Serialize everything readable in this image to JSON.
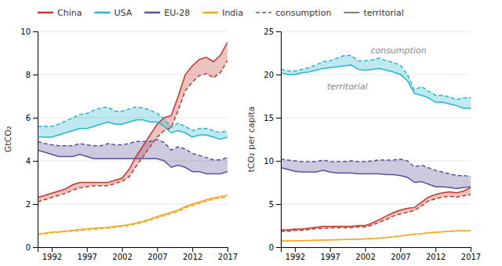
{
  "chart_data": [
    {
      "type": "line",
      "y_label": "GtCO₂",
      "legend": "top",
      "grid": true,
      "x": [
        1990,
        1991,
        1992,
        1993,
        1994,
        1995,
        1996,
        1997,
        1998,
        1999,
        2000,
        2001,
        2002,
        2003,
        2004,
        2005,
        2006,
        2007,
        2008,
        2009,
        2010,
        2011,
        2012,
        2013,
        2014,
        2015,
        2016,
        2017
      ],
      "xlim": [
        1990,
        2017
      ],
      "xticks": [
        1992,
        1997,
        2002,
        2007,
        2012,
        2017
      ],
      "ylim": [
        0,
        10
      ],
      "yticks": [
        0,
        2,
        4,
        6,
        8,
        10
      ],
      "line_style_legend": [
        {
          "label": "consumption",
          "line_style": "dashed"
        },
        {
          "label": "territorial",
          "line_style": "solid"
        }
      ],
      "series": [
        {
          "name": "China",
          "color": "#c0392b",
          "line_style": "solid",
          "values": [
            2.3,
            2.4,
            2.5,
            2.6,
            2.7,
            2.9,
            3.0,
            3.0,
            3.0,
            3.0,
            3.0,
            3.1,
            3.2,
            3.6,
            4.2,
            4.7,
            5.2,
            5.7,
            6.0,
            6.1,
            7.0,
            8.0,
            8.4,
            8.7,
            8.8,
            8.6,
            8.9,
            9.5
          ]
        },
        {
          "name": "China",
          "color": "#c0392b",
          "line_style": "dashed",
          "values": [
            2.1,
            2.2,
            2.3,
            2.4,
            2.5,
            2.65,
            2.75,
            2.8,
            2.85,
            2.85,
            2.85,
            2.95,
            3.05,
            3.25,
            3.75,
            4.2,
            4.65,
            5.1,
            5.4,
            5.55,
            6.35,
            7.25,
            7.65,
            7.95,
            8.05,
            7.85,
            8.1,
            8.65
          ]
        },
        {
          "name": "USA",
          "color": "#29b5cc",
          "line_style": "solid",
          "values": [
            5.1,
            5.1,
            5.1,
            5.2,
            5.3,
            5.4,
            5.5,
            5.5,
            5.6,
            5.7,
            5.8,
            5.7,
            5.7,
            5.8,
            5.9,
            5.9,
            5.8,
            5.8,
            5.6,
            5.3,
            5.4,
            5.3,
            5.1,
            5.2,
            5.2,
            5.1,
            5.0,
            5.1
          ]
        },
        {
          "name": "USA",
          "color": "#29b5cc",
          "line_style": "dashed",
          "values": [
            5.6,
            5.6,
            5.6,
            5.7,
            5.85,
            6.0,
            6.15,
            6.2,
            6.35,
            6.45,
            6.5,
            6.3,
            6.3,
            6.4,
            6.5,
            6.45,
            6.35,
            6.2,
            5.95,
            5.55,
            5.75,
            5.6,
            5.4,
            5.5,
            5.5,
            5.4,
            5.3,
            5.4
          ]
        },
        {
          "name": "EU-28",
          "color": "#5b5099",
          "line_style": "solid",
          "values": [
            4.5,
            4.4,
            4.3,
            4.2,
            4.2,
            4.2,
            4.3,
            4.2,
            4.1,
            4.1,
            4.1,
            4.1,
            4.1,
            4.1,
            4.1,
            4.1,
            4.1,
            4.1,
            4.0,
            3.7,
            3.8,
            3.7,
            3.5,
            3.5,
            3.4,
            3.4,
            3.4,
            3.5
          ]
        },
        {
          "name": "EU-28",
          "color": "#5b5099",
          "line_style": "dashed",
          "values": [
            4.9,
            4.8,
            4.75,
            4.7,
            4.7,
            4.7,
            4.8,
            4.75,
            4.7,
            4.7,
            4.8,
            4.75,
            4.75,
            4.8,
            4.9,
            4.9,
            4.9,
            5.0,
            4.85,
            4.5,
            4.65,
            4.55,
            4.35,
            4.25,
            4.15,
            4.05,
            4.05,
            4.15
          ]
        },
        {
          "name": "India",
          "color": "#f5a623",
          "line_style": "solid",
          "values": [
            0.6,
            0.65,
            0.7,
            0.72,
            0.75,
            0.78,
            0.82,
            0.85,
            0.88,
            0.9,
            0.92,
            0.96,
            1.0,
            1.05,
            1.12,
            1.2,
            1.3,
            1.42,
            1.52,
            1.62,
            1.72,
            1.88,
            2.0,
            2.1,
            2.2,
            2.28,
            2.35,
            2.4
          ]
        },
        {
          "name": "India",
          "color": "#f5a623",
          "line_style": "dashed",
          "values": [
            0.58,
            0.62,
            0.67,
            0.69,
            0.72,
            0.75,
            0.78,
            0.8,
            0.83,
            0.86,
            0.88,
            0.92,
            0.96,
            1.01,
            1.07,
            1.15,
            1.25,
            1.36,
            1.46,
            1.56,
            1.66,
            1.82,
            1.93,
            2.03,
            2.13,
            2.22,
            2.28,
            2.33
          ]
        }
      ]
    },
    {
      "type": "line",
      "y_label": "tCO₂ per capita",
      "grid": true,
      "x": [
        1990,
        1991,
        1992,
        1993,
        1994,
        1995,
        1996,
        1997,
        1998,
        1999,
        2000,
        2001,
        2002,
        2003,
        2004,
        2005,
        2006,
        2007,
        2008,
        2009,
        2010,
        2011,
        2012,
        2013,
        2014,
        2015,
        2016,
        2017
      ],
      "xlim": [
        1990,
        2017
      ],
      "xticks": [
        1992,
        1997,
        2002,
        2007,
        2012,
        2017
      ],
      "ylim": [
        0,
        25
      ],
      "yticks": [
        0,
        5,
        10,
        15,
        20,
        25
      ],
      "annotations": [
        {
          "text": "consumption"
        },
        {
          "text": "territorial"
        }
      ],
      "series": [
        {
          "name": "USA",
          "color": "#29b5cc",
          "line_style": "solid",
          "values": [
            20.2,
            20.0,
            20.0,
            20.2,
            20.3,
            20.5,
            20.7,
            20.8,
            20.9,
            21.0,
            21.1,
            20.6,
            20.5,
            20.6,
            20.7,
            20.5,
            20.3,
            20.0,
            19.3,
            17.8,
            17.6,
            17.3,
            16.8,
            16.8,
            16.6,
            16.4,
            16.1,
            16.1
          ]
        },
        {
          "name": "USA",
          "color": "#29b5cc",
          "line_style": "dashed",
          "values": [
            20.6,
            20.4,
            20.4,
            20.6,
            20.8,
            21.1,
            21.5,
            21.6,
            21.9,
            22.2,
            22.2,
            21.6,
            21.6,
            21.7,
            21.9,
            21.6,
            21.4,
            21.1,
            20.0,
            18.2,
            18.6,
            18.1,
            17.6,
            17.6,
            17.4,
            17.1,
            17.3,
            17.3
          ]
        },
        {
          "name": "EU-28",
          "color": "#5b5099",
          "line_style": "solid",
          "values": [
            9.2,
            9.0,
            8.8,
            8.7,
            8.7,
            8.7,
            8.9,
            8.7,
            8.6,
            8.6,
            8.6,
            8.5,
            8.5,
            8.5,
            8.5,
            8.4,
            8.4,
            8.3,
            8.1,
            7.5,
            7.6,
            7.3,
            7.0,
            7.0,
            6.9,
            6.8,
            6.9,
            7.0
          ]
        },
        {
          "name": "EU-28",
          "color": "#5b5099",
          "line_style": "dashed",
          "values": [
            10.2,
            10.1,
            10.0,
            9.9,
            9.9,
            9.9,
            10.1,
            9.9,
            9.9,
            9.9,
            10.0,
            9.9,
            9.9,
            10.0,
            10.1,
            10.1,
            10.1,
            10.2,
            10.0,
            9.3,
            9.5,
            9.2,
            8.9,
            8.7,
            8.5,
            8.3,
            8.3,
            8.2
          ]
        },
        {
          "name": "China",
          "color": "#c0392b",
          "line_style": "solid",
          "values": [
            2.0,
            2.0,
            2.1,
            2.1,
            2.2,
            2.3,
            2.4,
            2.4,
            2.4,
            2.4,
            2.4,
            2.5,
            2.5,
            2.8,
            3.2,
            3.6,
            4.0,
            4.3,
            4.5,
            4.6,
            5.2,
            5.8,
            6.1,
            6.3,
            6.4,
            6.3,
            6.5,
            6.9
          ]
        },
        {
          "name": "China",
          "color": "#c0392b",
          "line_style": "dashed",
          "values": [
            1.85,
            1.85,
            1.95,
            1.95,
            2.05,
            2.15,
            2.15,
            2.25,
            2.25,
            2.25,
            2.25,
            2.35,
            2.35,
            2.55,
            2.9,
            3.2,
            3.6,
            3.85,
            4.05,
            4.25,
            4.75,
            5.35,
            5.6,
            5.8,
            5.9,
            5.8,
            5.95,
            6.1
          ]
        },
        {
          "name": "India",
          "color": "#f5a623",
          "line_style": "solid",
          "values": [
            0.72,
            0.73,
            0.75,
            0.76,
            0.78,
            0.8,
            0.82,
            0.84,
            0.86,
            0.88,
            0.9,
            0.93,
            0.96,
            1.0,
            1.05,
            1.1,
            1.2,
            1.3,
            1.4,
            1.5,
            1.56,
            1.65,
            1.72,
            1.78,
            1.84,
            1.88,
            1.9,
            1.92
          ]
        },
        {
          "name": "India",
          "color": "#f5a623",
          "line_style": "dashed",
          "values": [
            0.72,
            0.73,
            0.75,
            0.76,
            0.78,
            0.8,
            0.82,
            0.84,
            0.86,
            0.88,
            0.9,
            0.93,
            0.96,
            1.0,
            1.05,
            1.1,
            1.2,
            1.3,
            1.4,
            1.5,
            1.56,
            1.65,
            1.72,
            1.78,
            1.84,
            1.88,
            1.9,
            1.92
          ]
        }
      ]
    }
  ]
}
